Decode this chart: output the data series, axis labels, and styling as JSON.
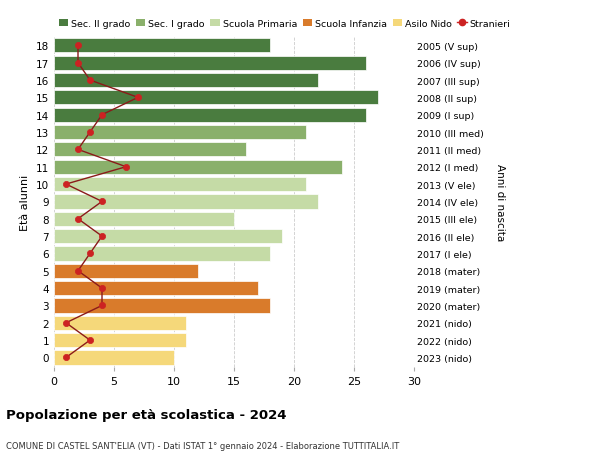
{
  "ages": [
    18,
    17,
    16,
    15,
    14,
    13,
    12,
    11,
    10,
    9,
    8,
    7,
    6,
    5,
    4,
    3,
    2,
    1,
    0
  ],
  "right_labels": [
    "2005 (V sup)",
    "2006 (IV sup)",
    "2007 (III sup)",
    "2008 (II sup)",
    "2009 (I sup)",
    "2010 (III med)",
    "2011 (II med)",
    "2012 (I med)",
    "2013 (V ele)",
    "2014 (IV ele)",
    "2015 (III ele)",
    "2016 (II ele)",
    "2017 (I ele)",
    "2018 (mater)",
    "2019 (mater)",
    "2020 (mater)",
    "2021 (nido)",
    "2022 (nido)",
    "2023 (nido)"
  ],
  "bar_values": [
    18,
    26,
    22,
    27,
    26,
    21,
    16,
    24,
    21,
    22,
    15,
    19,
    18,
    12,
    17,
    18,
    11,
    11,
    10
  ],
  "bar_colors": [
    "#4a7c3f",
    "#4a7c3f",
    "#4a7c3f",
    "#4a7c3f",
    "#4a7c3f",
    "#8ab06b",
    "#8ab06b",
    "#8ab06b",
    "#c5dba6",
    "#c5dba6",
    "#c5dba6",
    "#c5dba6",
    "#c5dba6",
    "#d97b2b",
    "#d97b2b",
    "#d97b2b",
    "#f5d87a",
    "#f5d87a",
    "#f5d87a"
  ],
  "stranieri_values": [
    2,
    2,
    3,
    7,
    4,
    3,
    2,
    6,
    1,
    4,
    2,
    4,
    3,
    2,
    4,
    4,
    1,
    3,
    1
  ],
  "legend_labels": [
    "Sec. II grado",
    "Sec. I grado",
    "Scuola Primaria",
    "Scuola Infanzia",
    "Asilo Nido",
    "Stranieri"
  ],
  "legend_colors": [
    "#4a7c3f",
    "#8ab06b",
    "#c5dba6",
    "#d97b2b",
    "#f5d87a",
    "#cc2222"
  ],
  "title": "Popolazione per età scolastica - 2024",
  "subtitle": "COMUNE DI CASTEL SANT'ELIA (VT) - Dati ISTAT 1° gennaio 2024 - Elaborazione TUTTITALIA.IT",
  "ylabel": "Età alunni",
  "ylabel_right": "Anni di nascita",
  "xlim": [
    0,
    30
  ],
  "xticks": [
    0,
    5,
    10,
    15,
    20,
    25,
    30
  ],
  "background_color": "#ffffff",
  "grid_color": "#cccccc"
}
